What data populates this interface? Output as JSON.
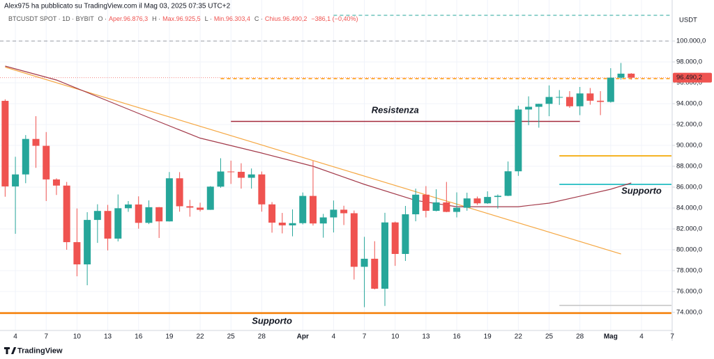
{
  "chart_data": {
    "type": "candlestick",
    "header": {
      "title": "Alex975 ha pubblicato su TradingView.com il Mag 03, 2025 07:35 UTC+2",
      "symbol": "BTCUSDT SPOT · 1D · BYBIT",
      "ohlc": [
        {
          "label": "O ·",
          "value": "Aper.96.876,3"
        },
        {
          "label": "H ·",
          "value": "Max.96.925,5"
        },
        {
          "label": "L ·",
          "value": "Min.96.303,4"
        },
        {
          "label": "C ·",
          "value": "Chius.96.490,2"
        }
      ],
      "change": "−386,1 (−0,40%)"
    },
    "currency": "USDT",
    "footer": "TradingView",
    "categories": [
      null,
      "4",
      null,
      null,
      "7",
      null,
      null,
      "10",
      null,
      null,
      "13",
      null,
      null,
      "16",
      null,
      null,
      "19",
      null,
      null,
      "22",
      null,
      null,
      "25",
      null,
      null,
      "28",
      null,
      null,
      null,
      "Apr",
      null,
      null,
      "4",
      null,
      null,
      "7",
      null,
      null,
      "10",
      null,
      null,
      "13",
      null,
      null,
      "16",
      null,
      null,
      "19",
      null,
      null,
      "22",
      null,
      null,
      "25",
      null,
      null,
      "28",
      null,
      null,
      "Mag",
      null,
      null,
      "4",
      null,
      null,
      "7"
    ],
    "open": [
      94270,
      86070,
      87220,
      90620,
      89960,
      86740,
      86150,
      80730,
      78600,
      82860,
      83720,
      81070,
      83980,
      84340,
      82580,
      84080,
      82720,
      86850,
      84170,
      84040,
      83830,
      86050,
      87500,
      87470,
      86900,
      87220,
      84350,
      82600,
      82340,
      82550,
      85160,
      82520,
      83100,
      83840,
      83500,
      78370,
      79140,
      76270,
      82620,
      79600,
      83400,
      85280,
      83730,
      84540,
      83630,
      84030,
      84920,
      84450,
      85060,
      85170,
      87520,
      93440,
      93700,
      93980,
      94640,
      94640,
      93750,
      94980,
      94280,
      94170,
      96490,
      96876.3,
      null,
      null,
      null,
      null
    ],
    "high": [
      94420,
      88910,
      90990,
      92800,
      91280,
      86850,
      86500,
      83960,
      83600,
      84360,
      84300,
      85300,
      84670,
      85120,
      84730,
      84100,
      87450,
      87440,
      84780,
      84510,
      86100,
      88770,
      88540,
      88290,
      87790,
      87500,
      84570,
      83530,
      83870,
      85490,
      88500,
      83440,
      84720,
      84220,
      83760,
      81240,
      80820,
      83540,
      82700,
      84200,
      85860,
      86100,
      85800,
      86500,
      85500,
      85470,
      85100,
      85600,
      85300,
      88460,
      93800,
      94700,
      94000,
      95750,
      95300,
      95200,
      95600,
      95500,
      95200,
      97400,
      97900,
      96925.5,
      null,
      null,
      null,
      null
    ],
    "low": [
      85080,
      81530,
      86380,
      87850,
      84670,
      85250,
      80000,
      77460,
      76600,
      80660,
      79940,
      80800,
      83630,
      82020,
      82460,
      81130,
      82700,
      83650,
      83170,
      83670,
      83820,
      85940,
      86310,
      85860,
      85860,
      83650,
      81640,
      81570,
      81290,
      82430,
      82320,
      81160,
      81660,
      82370,
      77150,
      74500,
      76200,
      74620,
      78460,
      78930,
      82730,
      83100,
      83680,
      83600,
      83100,
      83740,
      84300,
      84400,
      83950,
      85140,
      87080,
      91940,
      91700,
      92800,
      93880,
      93600,
      92900,
      93900,
      92900,
      94100,
      96300,
      96303.4,
      null,
      null,
      null,
      null
    ],
    "close": [
      86070,
      87220,
      90620,
      89960,
      86740,
      86150,
      80730,
      78600,
      82860,
      83720,
      81070,
      83980,
      84340,
      82580,
      84080,
      82720,
      86850,
      84170,
      84040,
      83830,
      86050,
      87500,
      87470,
      86900,
      87220,
      84350,
      82600,
      82340,
      82550,
      85160,
      82520,
      83100,
      83840,
      83500,
      78370,
      79140,
      76270,
      82620,
      79600,
      83400,
      85280,
      83730,
      84540,
      83630,
      84030,
      84920,
      84450,
      85060,
      85170,
      87520,
      93440,
      93700,
      93980,
      94640,
      94640,
      93750,
      94980,
      94280,
      94170,
      96490,
      96876.3,
      96490.2,
      null,
      null,
      null,
      null
    ],
    "up_color": "#26a69a",
    "down_color": "#ef5350",
    "ma": {
      "color": "#a33a4a",
      "x": [
        0,
        5,
        10,
        15,
        19,
        25,
        30,
        35,
        40,
        44,
        48,
        50,
        53,
        56,
        59,
        61
      ],
      "values": [
        97600,
        96270,
        94270,
        92270,
        90700,
        89270,
        88000,
        86270,
        84730,
        84130,
        84130,
        84130,
        84470,
        85130,
        85800,
        86400
      ]
    },
    "trendline": {
      "color": "#f5a742",
      "x": [
        0,
        60
      ],
      "values": [
        97500,
        79600
      ]
    },
    "levels": [
      {
        "value": 102470,
        "from": 32,
        "color": "#26a69a",
        "dash": true,
        "extend": "right",
        "width": 1
      },
      {
        "value": 100000,
        "from": 0,
        "color": "#9598a1",
        "dash": true,
        "extend": "both",
        "width": 1
      },
      {
        "value": 96400,
        "from": 21,
        "color": "#ff9800",
        "dash": true,
        "extend": "right",
        "width": 1.5
      },
      {
        "value": 92300,
        "from": 22,
        "to": 56,
        "color": "#a3283a",
        "dash": false,
        "width": 1.5
      },
      {
        "value": 89000,
        "from": 54,
        "color": "#f5b324",
        "dash": false,
        "extend": "right",
        "width": 2
      },
      {
        "value": 86270,
        "from": 54,
        "color": "#3cc4c9",
        "dash": false,
        "extend": "right",
        "width": 2
      },
      {
        "value": 74670,
        "from": 54,
        "color": "#c4c4c4",
        "dash": false,
        "extend": "right",
        "width": 1.5
      },
      {
        "value": 73930,
        "from": 0,
        "color": "#f57c00",
        "dash": false,
        "extend": "both",
        "width": 2.5
      }
    ],
    "annotations": [
      {
        "text": "Resistenza",
        "color": "#e0454f"
      },
      {
        "text": "Supporto",
        "color": "#2fb8c6"
      },
      {
        "text": "Supporto",
        "color": "#3d7fd6"
      }
    ],
    "last_price": {
      "value": 96490.2,
      "label": "96.490,2"
    },
    "ylim": [
      72267,
      102600
    ],
    "yticks": [
      {
        "value": 74000,
        "label": "74.000,0"
      },
      {
        "value": 76000,
        "label": "76.000,0"
      },
      {
        "value": 78000,
        "label": "78.000,0"
      },
      {
        "value": 80000,
        "label": "80.000,0"
      },
      {
        "value": 82000,
        "label": "82.000,0"
      },
      {
        "value": 84000,
        "label": "84.000,0"
      },
      {
        "value": 86000,
        "label": "86.000,0"
      },
      {
        "value": 88000,
        "label": "88.000,0"
      },
      {
        "value": 90000,
        "label": "90.000,0"
      },
      {
        "value": 92000,
        "label": "92.000,0"
      },
      {
        "value": 94000,
        "label": "94.000,0"
      },
      {
        "value": 96000,
        "label": "96.000,0"
      },
      {
        "value": 98000,
        "label": "98.000,0"
      },
      {
        "value": 100000,
        "label": "100.000,0"
      }
    ],
    "grid": true
  }
}
